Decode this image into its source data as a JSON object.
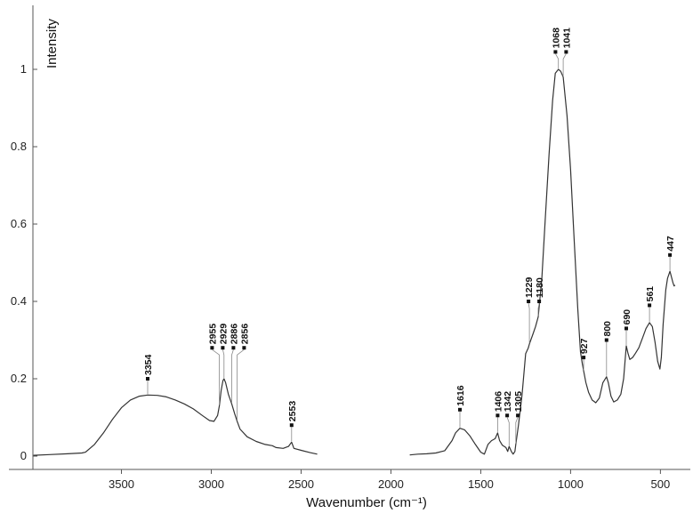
{
  "chart_data": {
    "type": "line",
    "title": "",
    "xlabel": "Wavenumber (cm⁻¹)",
    "ylabel": "Intensity",
    "xlim": [
      4000,
      400
    ],
    "ylim": [
      -0.02,
      1.15
    ],
    "x_reversed": true,
    "grid": false,
    "legend": "none",
    "x_ticks": [
      3500,
      3000,
      2500,
      2000,
      1500,
      1000,
      500
    ],
    "y_ticks": [
      0,
      0.2,
      0.4,
      0.6,
      0.8,
      1
    ],
    "x_tick_labels": [
      "3500",
      "3000",
      "2500",
      "2000",
      "1500",
      "1000",
      "500"
    ],
    "y_tick_labels": [
      "0",
      "0.2",
      "0.4",
      "0.6",
      "0.8",
      "1"
    ],
    "line_color": "#333333",
    "series": [
      {
        "segment": "high-wavenumber",
        "points": [
          [
            3990,
            0.002
          ],
          [
            3900,
            0.004
          ],
          [
            3800,
            0.006
          ],
          [
            3720,
            0.008
          ],
          [
            3700,
            0.01
          ],
          [
            3650,
            0.03
          ],
          [
            3600,
            0.06
          ],
          [
            3550,
            0.095
          ],
          [
            3500,
            0.125
          ],
          [
            3450,
            0.145
          ],
          [
            3400,
            0.155
          ],
          [
            3354,
            0.158
          ],
          [
            3300,
            0.157
          ],
          [
            3250,
            0.153
          ],
          [
            3200,
            0.145
          ],
          [
            3150,
            0.135
          ],
          [
            3100,
            0.122
          ],
          [
            3050,
            0.105
          ],
          [
            3010,
            0.092
          ],
          [
            2985,
            0.09
          ],
          [
            2965,
            0.105
          ],
          [
            2955,
            0.13
          ],
          [
            2945,
            0.17
          ],
          [
            2935,
            0.195
          ],
          [
            2929,
            0.2
          ],
          [
            2920,
            0.19
          ],
          [
            2905,
            0.16
          ],
          [
            2886,
            0.135
          ],
          [
            2870,
            0.11
          ],
          [
            2856,
            0.09
          ],
          [
            2840,
            0.07
          ],
          [
            2800,
            0.05
          ],
          [
            2750,
            0.038
          ],
          [
            2700,
            0.03
          ],
          [
            2660,
            0.027
          ],
          [
            2640,
            0.022
          ],
          [
            2600,
            0.02
          ],
          [
            2570,
            0.025
          ],
          [
            2553,
            0.036
          ],
          [
            2540,
            0.02
          ],
          [
            2500,
            0.015
          ],
          [
            2450,
            0.009
          ],
          [
            2410,
            0.005
          ]
        ]
      },
      {
        "segment": "low-wavenumber",
        "points": [
          [
            1895,
            0.003
          ],
          [
            1850,
            0.005
          ],
          [
            1800,
            0.006
          ],
          [
            1750,
            0.008
          ],
          [
            1700,
            0.014
          ],
          [
            1660,
            0.04
          ],
          [
            1640,
            0.06
          ],
          [
            1616,
            0.072
          ],
          [
            1590,
            0.068
          ],
          [
            1560,
            0.052
          ],
          [
            1530,
            0.03
          ],
          [
            1500,
            0.01
          ],
          [
            1480,
            0.005
          ],
          [
            1460,
            0.03
          ],
          [
            1440,
            0.04
          ],
          [
            1420,
            0.045
          ],
          [
            1406,
            0.06
          ],
          [
            1395,
            0.04
          ],
          [
            1380,
            0.028
          ],
          [
            1360,
            0.022
          ],
          [
            1350,
            0.012
          ],
          [
            1342,
            0.025
          ],
          [
            1330,
            0.012
          ],
          [
            1320,
            0.005
          ],
          [
            1310,
            0.012
          ],
          [
            1305,
            0.03
          ],
          [
            1290,
            0.08
          ],
          [
            1270,
            0.16
          ],
          [
            1250,
            0.265
          ],
          [
            1235,
            0.28
          ],
          [
            1229,
            0.29
          ],
          [
            1210,
            0.315
          ],
          [
            1195,
            0.335
          ],
          [
            1180,
            0.36
          ],
          [
            1160,
            0.46
          ],
          [
            1140,
            0.62
          ],
          [
            1120,
            0.78
          ],
          [
            1100,
            0.92
          ],
          [
            1085,
            0.99
          ],
          [
            1068,
            1.0
          ],
          [
            1055,
            0.995
          ],
          [
            1041,
            0.98
          ],
          [
            1020,
            0.88
          ],
          [
            1000,
            0.74
          ],
          [
            980,
            0.56
          ],
          [
            960,
            0.38
          ],
          [
            945,
            0.27
          ],
          [
            935,
            0.24
          ],
          [
            927,
            0.22
          ],
          [
            915,
            0.19
          ],
          [
            900,
            0.165
          ],
          [
            880,
            0.145
          ],
          [
            860,
            0.138
          ],
          [
            840,
            0.15
          ],
          [
            820,
            0.19
          ],
          [
            800,
            0.205
          ],
          [
            790,
            0.19
          ],
          [
            775,
            0.155
          ],
          [
            760,
            0.14
          ],
          [
            740,
            0.145
          ],
          [
            720,
            0.16
          ],
          [
            705,
            0.2
          ],
          [
            690,
            0.285
          ],
          [
            680,
            0.265
          ],
          [
            670,
            0.25
          ],
          [
            655,
            0.255
          ],
          [
            640,
            0.265
          ],
          [
            620,
            0.28
          ],
          [
            600,
            0.305
          ],
          [
            580,
            0.33
          ],
          [
            561,
            0.345
          ],
          [
            545,
            0.335
          ],
          [
            530,
            0.295
          ],
          [
            515,
            0.245
          ],
          [
            503,
            0.225
          ],
          [
            495,
            0.255
          ],
          [
            485,
            0.34
          ],
          [
            470,
            0.43
          ],
          [
            460,
            0.46
          ],
          [
            447,
            0.478
          ],
          [
            438,
            0.462
          ],
          [
            430,
            0.448
          ],
          [
            424,
            0.44
          ],
          [
            418,
            0.442
          ]
        ]
      }
    ],
    "annotations": [
      {
        "label": "3354",
        "x": 3354,
        "y": 0.158,
        "marker_y": 0.2
      },
      {
        "label": "2955",
        "x": 2955,
        "y": 0.13,
        "marker_y": 0.28
      },
      {
        "label": "2929",
        "x": 2929,
        "y": 0.2,
        "marker_y": 0.28
      },
      {
        "label": "2886",
        "x": 2886,
        "y": 0.135,
        "marker_y": 0.28
      },
      {
        "label": "2856",
        "x": 2856,
        "y": 0.09,
        "marker_y": 0.28
      },
      {
        "label": "2553",
        "x": 2553,
        "y": 0.036,
        "marker_y": 0.08
      },
      {
        "label": "1616",
        "x": 1616,
        "y": 0.072,
        "marker_y": 0.12
      },
      {
        "label": "1406",
        "x": 1406,
        "y": 0.06,
        "marker_y": 0.105
      },
      {
        "label": "1342",
        "x": 1342,
        "y": 0.025,
        "marker_y": 0.105
      },
      {
        "label": "1305",
        "x": 1305,
        "y": 0.03,
        "marker_y": 0.105
      },
      {
        "label": "1229",
        "x": 1229,
        "y": 0.29,
        "marker_y": 0.4
      },
      {
        "label": "1180",
        "x": 1180,
        "y": 0.36,
        "marker_y": 0.4
      },
      {
        "label": "1068",
        "x": 1068,
        "y": 1.0,
        "marker_y": 1.045
      },
      {
        "label": "1041",
        "x": 1041,
        "y": 0.98,
        "marker_y": 1.045
      },
      {
        "label": "927",
        "x": 927,
        "y": 0.22,
        "marker_y": 0.255
      },
      {
        "label": "800",
        "x": 800,
        "y": 0.205,
        "marker_y": 0.3
      },
      {
        "label": "690",
        "x": 690,
        "y": 0.285,
        "marker_y": 0.33
      },
      {
        "label": "561",
        "x": 561,
        "y": 0.345,
        "marker_y": 0.39
      },
      {
        "label": "447",
        "x": 447,
        "y": 0.478,
        "marker_y": 0.52
      }
    ]
  }
}
